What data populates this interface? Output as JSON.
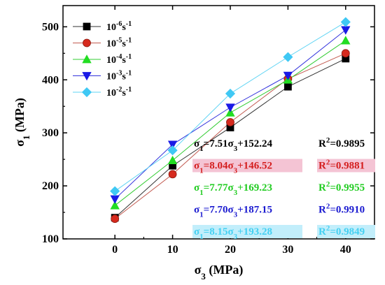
{
  "chart_data": {
    "type": "line",
    "xlabel_main": "σ",
    "xlabel_sub": "3",
    "xlabel_unit": " (MPa)",
    "ylabel_main": "σ",
    "ylabel_sub": "1",
    "ylabel_unit": " (MPa)",
    "xlim": [
      -9,
      45
    ],
    "ylim": [
      100,
      540
    ],
    "xticks": [
      0,
      10,
      20,
      30,
      40
    ],
    "yticks": [
      100,
      200,
      300,
      400,
      500
    ],
    "x": [
      0,
      10,
      20,
      30,
      40
    ],
    "legend_position": "top-left",
    "series": [
      {
        "name_base": "10",
        "name_exp": "-6",
        "name_unit": "s",
        "name_unit_exp": "-1",
        "marker": "square",
        "color": "#000000",
        "line_color": "#333333",
        "values": [
          140,
          238,
          310,
          387,
          440
        ],
        "equation": "σ1=7.51σ3+152.24",
        "r2": "R2=0.9895",
        "eq": {
          "p1": "σ",
          "s1": "1",
          "p2": "=7.51σ",
          "s2": "3",
          "p3": "+152.24",
          "r": "R",
          "rs": "2",
          "rv": "=0.9895"
        },
        "eq_color": "#000000",
        "highlight": ""
      },
      {
        "name_base": "10",
        "name_exp": "-5",
        "name_unit": "s",
        "name_unit_exp": "-1",
        "marker": "circle",
        "color": "#d62a1e",
        "edge": "#8b1a10",
        "line_color": "#c25a50",
        "values": [
          138,
          222,
          320,
          402,
          450
        ],
        "equation": "σ1=8.04σ3+146.52",
        "r2": "R2=0.9881",
        "eq": {
          "p1": "σ",
          "s1": "1",
          "p2": "=8.04σ",
          "s2": "3",
          "p3": "+146.52",
          "r": "R",
          "rs": "2",
          "rv": "=0.9881"
        },
        "eq_color": "#d41e1e",
        "highlight": "#f4c4d4"
      },
      {
        "name_base": "10",
        "name_exp": "-4",
        "name_unit": "s",
        "name_unit_exp": "-1",
        "marker": "triangle-up",
        "color": "#22dd22",
        "line_color": "#33cc33",
        "values": [
          163,
          248,
          338,
          400,
          474
        ],
        "equation": "σ1=7.77σ3+169.23",
        "r2": "R2=0.9955",
        "eq": {
          "p1": "σ",
          "s1": "1",
          "p2": "=7.77σ",
          "s2": "3",
          "p3": "+169.23",
          "r": "R",
          "rs": "2",
          "rv": "=0.9955"
        },
        "eq_color": "#22cc22",
        "highlight": ""
      },
      {
        "name_base": "10",
        "name_exp": "-3",
        "name_unit": "s",
        "name_unit_exp": "-1",
        "marker": "triangle-down",
        "color": "#1a1ae6",
        "line_color": "#3333dd",
        "values": [
          175,
          278,
          348,
          408,
          494
        ],
        "equation": "σ1=7.70σ3+187.15",
        "r2": "R2=0.9910",
        "eq": {
          "p1": "σ",
          "s1": "1",
          "p2": "=7.70σ",
          "s2": "3",
          "p3": "+187.15",
          "r": "R",
          "rs": "2",
          "rv": "=0.9910"
        },
        "eq_color": "#1a1ad0",
        "highlight": ""
      },
      {
        "name_base": "10",
        "name_exp": "-2",
        "name_unit": "s",
        "name_unit_exp": "-1",
        "marker": "diamond",
        "color": "#3fc8f4",
        "line_color": "#5fd4f4",
        "values": [
          190,
          267,
          374,
          443,
          509
        ],
        "equation": "σ1=8.15σ3+193.28",
        "r2": "R2=0.9849",
        "eq": {
          "p1": "σ",
          "s1": "1",
          "p2": "=8.15σ",
          "s2": "3",
          "p3": "+193.28",
          "r": "R",
          "rs": "2",
          "rv": "=0.9849"
        },
        "eq_color": "#44d0f2",
        "highlight": "#c2eefb"
      }
    ]
  }
}
